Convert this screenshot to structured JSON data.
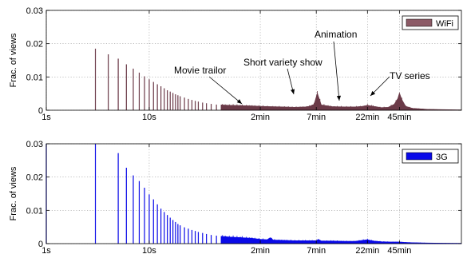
{
  "chart_data": [
    {
      "type": "bar",
      "panel": "top",
      "series_name": "WiFi",
      "color": "#6b3a48",
      "legend_fill": "#8c5a66",
      "ylabel": "Frac. of views",
      "ylim": [
        0,
        0.03
      ],
      "y_ticks": [
        0,
        0.01,
        0.02,
        0.03
      ],
      "y_tick_labels": [
        "0",
        "0.01",
        "0.02",
        "0.03"
      ],
      "x_scale": "log",
      "x_unit": "seconds",
      "xlim": [
        1,
        10800
      ],
      "x_ticks": [
        1,
        10,
        120,
        420,
        1320,
        2700
      ],
      "x_tick_labels": [
        "1s",
        "10s",
        "2min",
        "7min",
        "22min",
        "45min"
      ],
      "legend_placement": "top-right",
      "grid": true,
      "spikes": {
        "x": [
          3,
          4,
          5,
          6,
          7,
          8,
          9,
          10,
          11,
          12,
          13,
          14,
          15,
          16,
          17,
          18,
          19,
          20,
          22,
          24,
          26,
          28,
          30,
          33,
          36,
          40,
          45
        ],
        "y": [
          0.0185,
          0.0168,
          0.0155,
          0.0138,
          0.0125,
          0.0113,
          0.0102,
          0.0093,
          0.0085,
          0.0078,
          0.0072,
          0.0066,
          0.006,
          0.0056,
          0.0052,
          0.0048,
          0.0045,
          0.0042,
          0.0038,
          0.0034,
          0.0031,
          0.0028,
          0.0026,
          0.0023,
          0.0021,
          0.0019,
          0.0017
        ]
      },
      "envelope": {
        "x": [
          50,
          60,
          80,
          100,
          120,
          150,
          200,
          260,
          330,
          360,
          400,
          430,
          470,
          600,
          800,
          1000,
          1200,
          1320,
          1500,
          1800,
          2100,
          2400,
          2600,
          2700,
          2850,
          3100,
          3600,
          5000,
          7000,
          10800
        ],
        "y": [
          0.0016,
          0.0015,
          0.0014,
          0.0013,
          0.0012,
          0.0011,
          0.001,
          0.0009,
          0.001,
          0.0012,
          0.0018,
          0.0052,
          0.0016,
          0.0011,
          0.001,
          0.001,
          0.0012,
          0.0015,
          0.0012,
          0.0008,
          0.0009,
          0.0018,
          0.0035,
          0.0052,
          0.0032,
          0.0012,
          0.0006,
          0.0003,
          0.0002,
          0.0001
        ]
      },
      "annotations": [
        {
          "text": "Movie trailor",
          "x": 130,
          "y": 0.0015
        },
        {
          "text": "Short variety show",
          "x": 430,
          "y": 0.0045
        },
        {
          "text": "Animation",
          "x": 1320,
          "y": 0.0018
        },
        {
          "text": "TV series",
          "x": 2700,
          "y": 0.0048
        }
      ]
    },
    {
      "type": "bar",
      "panel": "bottom",
      "series_name": "3G",
      "color": "#0a0ae8",
      "legend_fill": "#0a0ae8",
      "ylabel": "Frac. of views",
      "ylim": [
        0,
        0.03
      ],
      "y_ticks": [
        0,
        0.01,
        0.02,
        0.03
      ],
      "y_tick_labels": [
        "0",
        "0.01",
        "0.02",
        "0.03"
      ],
      "x_scale": "log",
      "x_unit": "seconds",
      "xlim": [
        1,
        10800
      ],
      "x_ticks": [
        1,
        10,
        120,
        420,
        1320,
        2700
      ],
      "x_tick_labels": [
        "1s",
        "10s",
        "2min",
        "7min",
        "22min",
        "45min"
      ],
      "legend_placement": "top-right",
      "grid": true,
      "spikes": {
        "x": [
          1,
          3,
          5,
          6,
          7,
          8,
          9,
          10,
          11,
          12,
          13,
          14,
          15,
          16,
          17,
          18,
          19,
          20,
          22,
          24,
          26,
          28,
          30,
          33,
          36,
          40,
          45
        ],
        "y": [
          0.03,
          0.03,
          0.0272,
          0.0228,
          0.0205,
          0.0188,
          0.0168,
          0.0148,
          0.0133,
          0.0118,
          0.0105,
          0.0095,
          0.0086,
          0.0078,
          0.0071,
          0.0065,
          0.0059,
          0.0055,
          0.0049,
          0.0045,
          0.0041,
          0.0038,
          0.0035,
          0.0032,
          0.0029,
          0.0026,
          0.0024
        ]
      },
      "envelope": {
        "x": [
          50,
          60,
          80,
          100,
          120,
          140,
          150,
          160,
          200,
          260,
          330,
          420,
          440,
          470,
          600,
          800,
          1000,
          1320,
          1500,
          1800,
          2200,
          2700,
          3000,
          3600,
          5000,
          7000,
          10800
        ],
        "y": [
          0.0022,
          0.002,
          0.0018,
          0.0016,
          0.0013,
          0.0012,
          0.0018,
          0.0011,
          0.001,
          0.0009,
          0.0009,
          0.0009,
          0.0013,
          0.0008,
          0.0008,
          0.0007,
          0.0007,
          0.0012,
          0.0008,
          0.0006,
          0.0005,
          0.0005,
          0.0004,
          0.0003,
          0.0002,
          0.00015,
          0.0001
        ]
      },
      "annotations": []
    }
  ]
}
